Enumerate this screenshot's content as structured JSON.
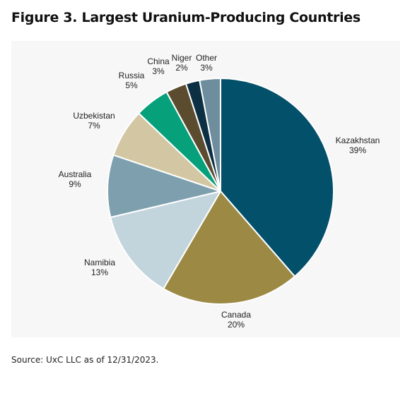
{
  "header": {
    "title": "Figure 3. Largest Uranium-Producing Countries"
  },
  "footer": {
    "source": "Source: UxC LLC as of 12/31/2023."
  },
  "chart_data": {
    "type": "pie",
    "title": "Figure 3. Largest Uranium-Producing Countries",
    "unit": "%",
    "slices": [
      {
        "label": "Kazakhstan",
        "value": 39,
        "color": "#03506b"
      },
      {
        "label": "Canada",
        "value": 20,
        "color": "#9b8944"
      },
      {
        "label": "Namibia",
        "value": 13,
        "color": "#c2d4dc"
      },
      {
        "label": "Australia",
        "value": 9,
        "color": "#7d9fae"
      },
      {
        "label": "Uzbekistan",
        "value": 7,
        "color": "#d3c7a3"
      },
      {
        "label": "Russia",
        "value": 5,
        "color": "#06a07b"
      },
      {
        "label": "China",
        "value": 3,
        "color": "#5b4c30"
      },
      {
        "label": "Niger",
        "value": 2,
        "color": "#0d2f44"
      },
      {
        "label": "Other",
        "value": 3,
        "color": "#6e8e9e"
      }
    ],
    "slice_border_color": "#ffffff",
    "panel_background": "#f7f7f7",
    "label_color": "#222222"
  }
}
